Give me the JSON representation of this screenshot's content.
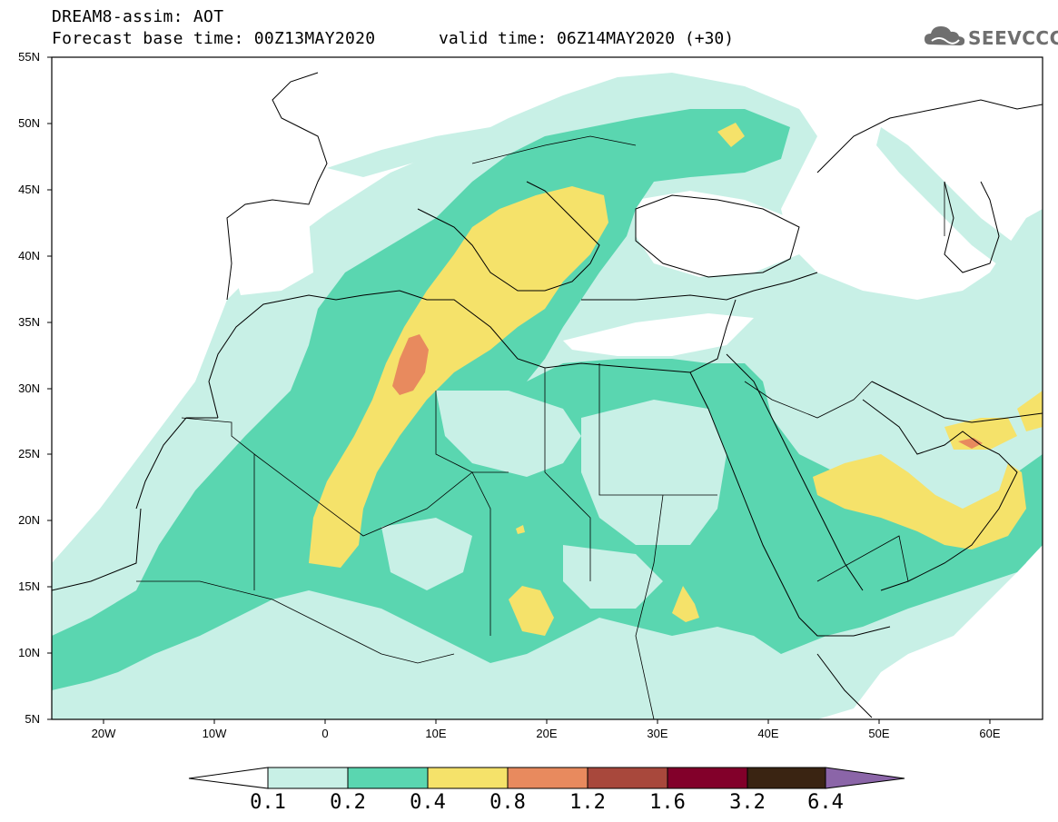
{
  "title_line1": "DREAM8-assim: AOT",
  "title_line2": "Forecast base time: 00Z13MAY2020",
  "title_line2b": "valid time: 06Z14MAY2020 (+30)",
  "logo_text": "SEEVCCC",
  "lat_labels": [
    "55N",
    "50N",
    "45N",
    "40N",
    "35N",
    "30N",
    "25N",
    "20N",
    "15N",
    "10N",
    "5N"
  ],
  "lon_labels": [
    "20W",
    "10W",
    "0",
    "10E",
    "20E",
    "30E",
    "40E",
    "50E",
    "60E"
  ],
  "legend": {
    "labels": [
      "0.1",
      "0.2",
      "0.4",
      "0.8",
      "1.2",
      "1.6",
      "3.2",
      "6.4"
    ],
    "colors": [
      "#ffffff",
      "#c8f0e6",
      "#5ad6b0",
      "#f5e26a",
      "#e88a5e",
      "#a8483c",
      "#82002a",
      "#3a2412",
      "#8b65a8"
    ]
  },
  "colors": {
    "c01": "#c8f0e6",
    "c02": "#5ad6b0",
    "c04": "#f5e26a",
    "c08": "#e88a5e",
    "c12": "#a8483c"
  }
}
